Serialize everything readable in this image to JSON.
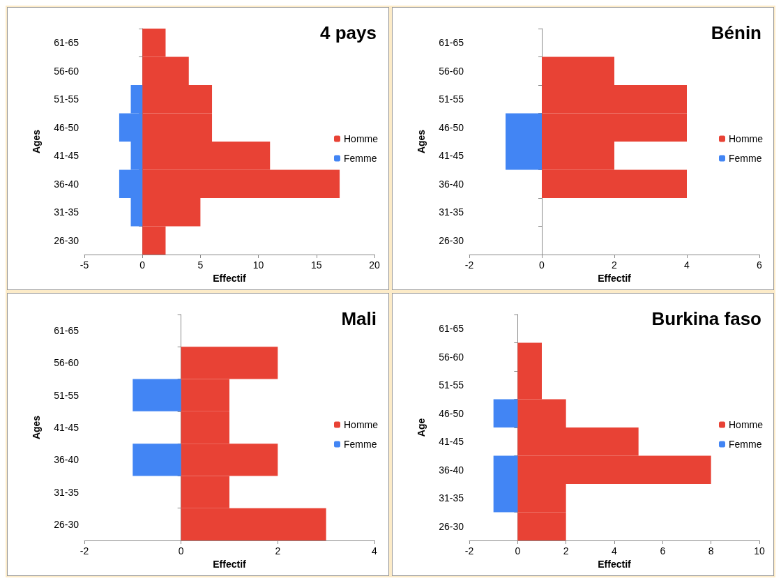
{
  "chart_data": [
    {
      "type": "bar",
      "orientation": "horizontal",
      "stacked": true,
      "title": "4 pays",
      "xlabel": "Effectif",
      "ylabel": "Ages",
      "categories": [
        "61-65",
        "56-60",
        "51-55",
        "46-50",
        "41-45",
        "36-40",
        "31-35",
        "26-30"
      ],
      "series": [
        {
          "name": "Homme",
          "color": "#e84235",
          "values": [
            2,
            4,
            6,
            6,
            11,
            17,
            5,
            2
          ]
        },
        {
          "name": "Femme",
          "color": "#4285f4",
          "values": [
            null,
            null,
            -1,
            -2,
            -1,
            -2,
            -1,
            null
          ]
        }
      ],
      "xlim": [
        -5,
        20
      ],
      "xticks": [
        -5,
        0,
        5,
        10,
        15,
        20
      ],
      "legend": "right"
    },
    {
      "type": "bar",
      "orientation": "horizontal",
      "stacked": true,
      "title": "Bénin",
      "xlabel": "Effectif",
      "ylabel": "Ages",
      "categories": [
        "61-65",
        "56-60",
        "51-55",
        "46-50",
        "41-45",
        "36-40",
        "31-35",
        "26-30"
      ],
      "series": [
        {
          "name": "Homme",
          "color": "#e84235",
          "values": [
            null,
            2,
            4,
            4,
            2,
            4,
            null,
            null
          ]
        },
        {
          "name": "Femme",
          "color": "#4285f4",
          "values": [
            null,
            null,
            null,
            -1,
            -1,
            null,
            null,
            null
          ]
        }
      ],
      "xlim": [
        -2,
        6
      ],
      "xticks": [
        -2,
        0,
        2,
        4,
        6
      ],
      "legend": "right"
    },
    {
      "type": "bar",
      "orientation": "horizontal",
      "stacked": true,
      "title": "Mali",
      "xlabel": "Effectif",
      "ylabel": "Ages",
      "categories": [
        "61-65",
        "56-60",
        "51-55",
        "41-45",
        "36-40",
        "31-35",
        "26-30"
      ],
      "series": [
        {
          "name": "Homme",
          "color": "#e84235",
          "values": [
            null,
            2,
            1,
            1,
            2,
            1,
            3
          ]
        },
        {
          "name": "Femme",
          "color": "#4285f4",
          "values": [
            null,
            null,
            -1,
            null,
            -1,
            null,
            null
          ]
        }
      ],
      "xlim": [
        -2,
        4
      ],
      "xticks": [
        -2,
        0,
        2,
        4
      ],
      "legend": "right"
    },
    {
      "type": "bar",
      "orientation": "horizontal",
      "stacked": true,
      "title": "Burkina faso",
      "xlabel": "Effectif",
      "ylabel": "Age",
      "categories": [
        "61-65",
        "56-60",
        "51-55",
        "46-50",
        "41-45",
        "36-40",
        "31-35",
        "26-30"
      ],
      "series": [
        {
          "name": "Homme",
          "color": "#e84235",
          "values": [
            null,
            1,
            1,
            2,
            5,
            8,
            2,
            2
          ]
        },
        {
          "name": "Femme",
          "color": "#4285f4",
          "values": [
            null,
            null,
            null,
            -1,
            null,
            -1,
            -1,
            null
          ]
        }
      ],
      "xlim": [
        -2,
        10
      ],
      "xticks": [
        -2,
        0,
        2,
        4,
        6,
        8,
        10
      ],
      "legend": "right"
    }
  ]
}
